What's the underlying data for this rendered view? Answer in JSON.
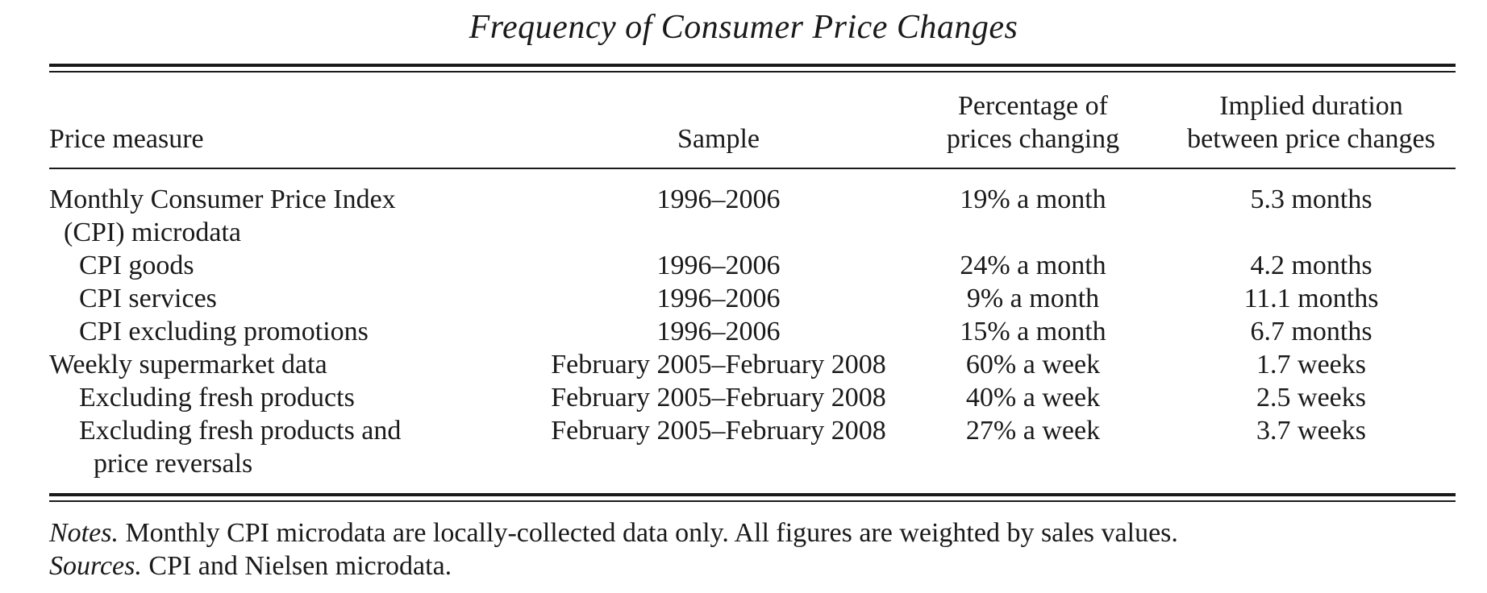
{
  "title": "Frequency of Consumer Price Changes",
  "headers": {
    "measure": "Price measure",
    "sample": "Sample",
    "pct_line1": "Percentage of",
    "pct_line2": "prices changing",
    "dur_line1": "Implied duration",
    "dur_line2": "between price changes"
  },
  "rows": [
    {
      "measure": "Monthly Consumer Price Index",
      "measure_cont": "(CPI) microdata",
      "sample": "1996–2006",
      "pct": "19% a month",
      "dur": "5.3 months"
    },
    {
      "measure": "CPI goods",
      "sample": "1996–2006",
      "pct": "24% a month",
      "dur": "4.2 months"
    },
    {
      "measure": "CPI services",
      "sample": "1996–2006",
      "pct": "9% a month",
      "dur": "11.1 months"
    },
    {
      "measure": "CPI excluding promotions",
      "sample": "1996–2006",
      "pct": "15% a month",
      "dur": "6.7 months"
    },
    {
      "measure": "Weekly supermarket data",
      "sample": "February 2005–February 2008",
      "pct": "60% a week",
      "dur": "1.7 weeks"
    },
    {
      "measure": "Excluding fresh products",
      "sample": "February 2005–February 2008",
      "pct": "40% a week",
      "dur": "2.5 weeks"
    },
    {
      "measure": "Excluding fresh products and",
      "measure_cont": "price reversals",
      "sample": "February 2005–February 2008",
      "pct": "27% a week",
      "dur": "3.7 weeks"
    }
  ],
  "notes": {
    "notes_label": "Notes.",
    "notes_text": " Monthly CPI microdata are locally-collected data only. All figures are weighted by sales values.",
    "sources_label": "Sources.",
    "sources_text": " CPI and Nielsen microdata."
  }
}
